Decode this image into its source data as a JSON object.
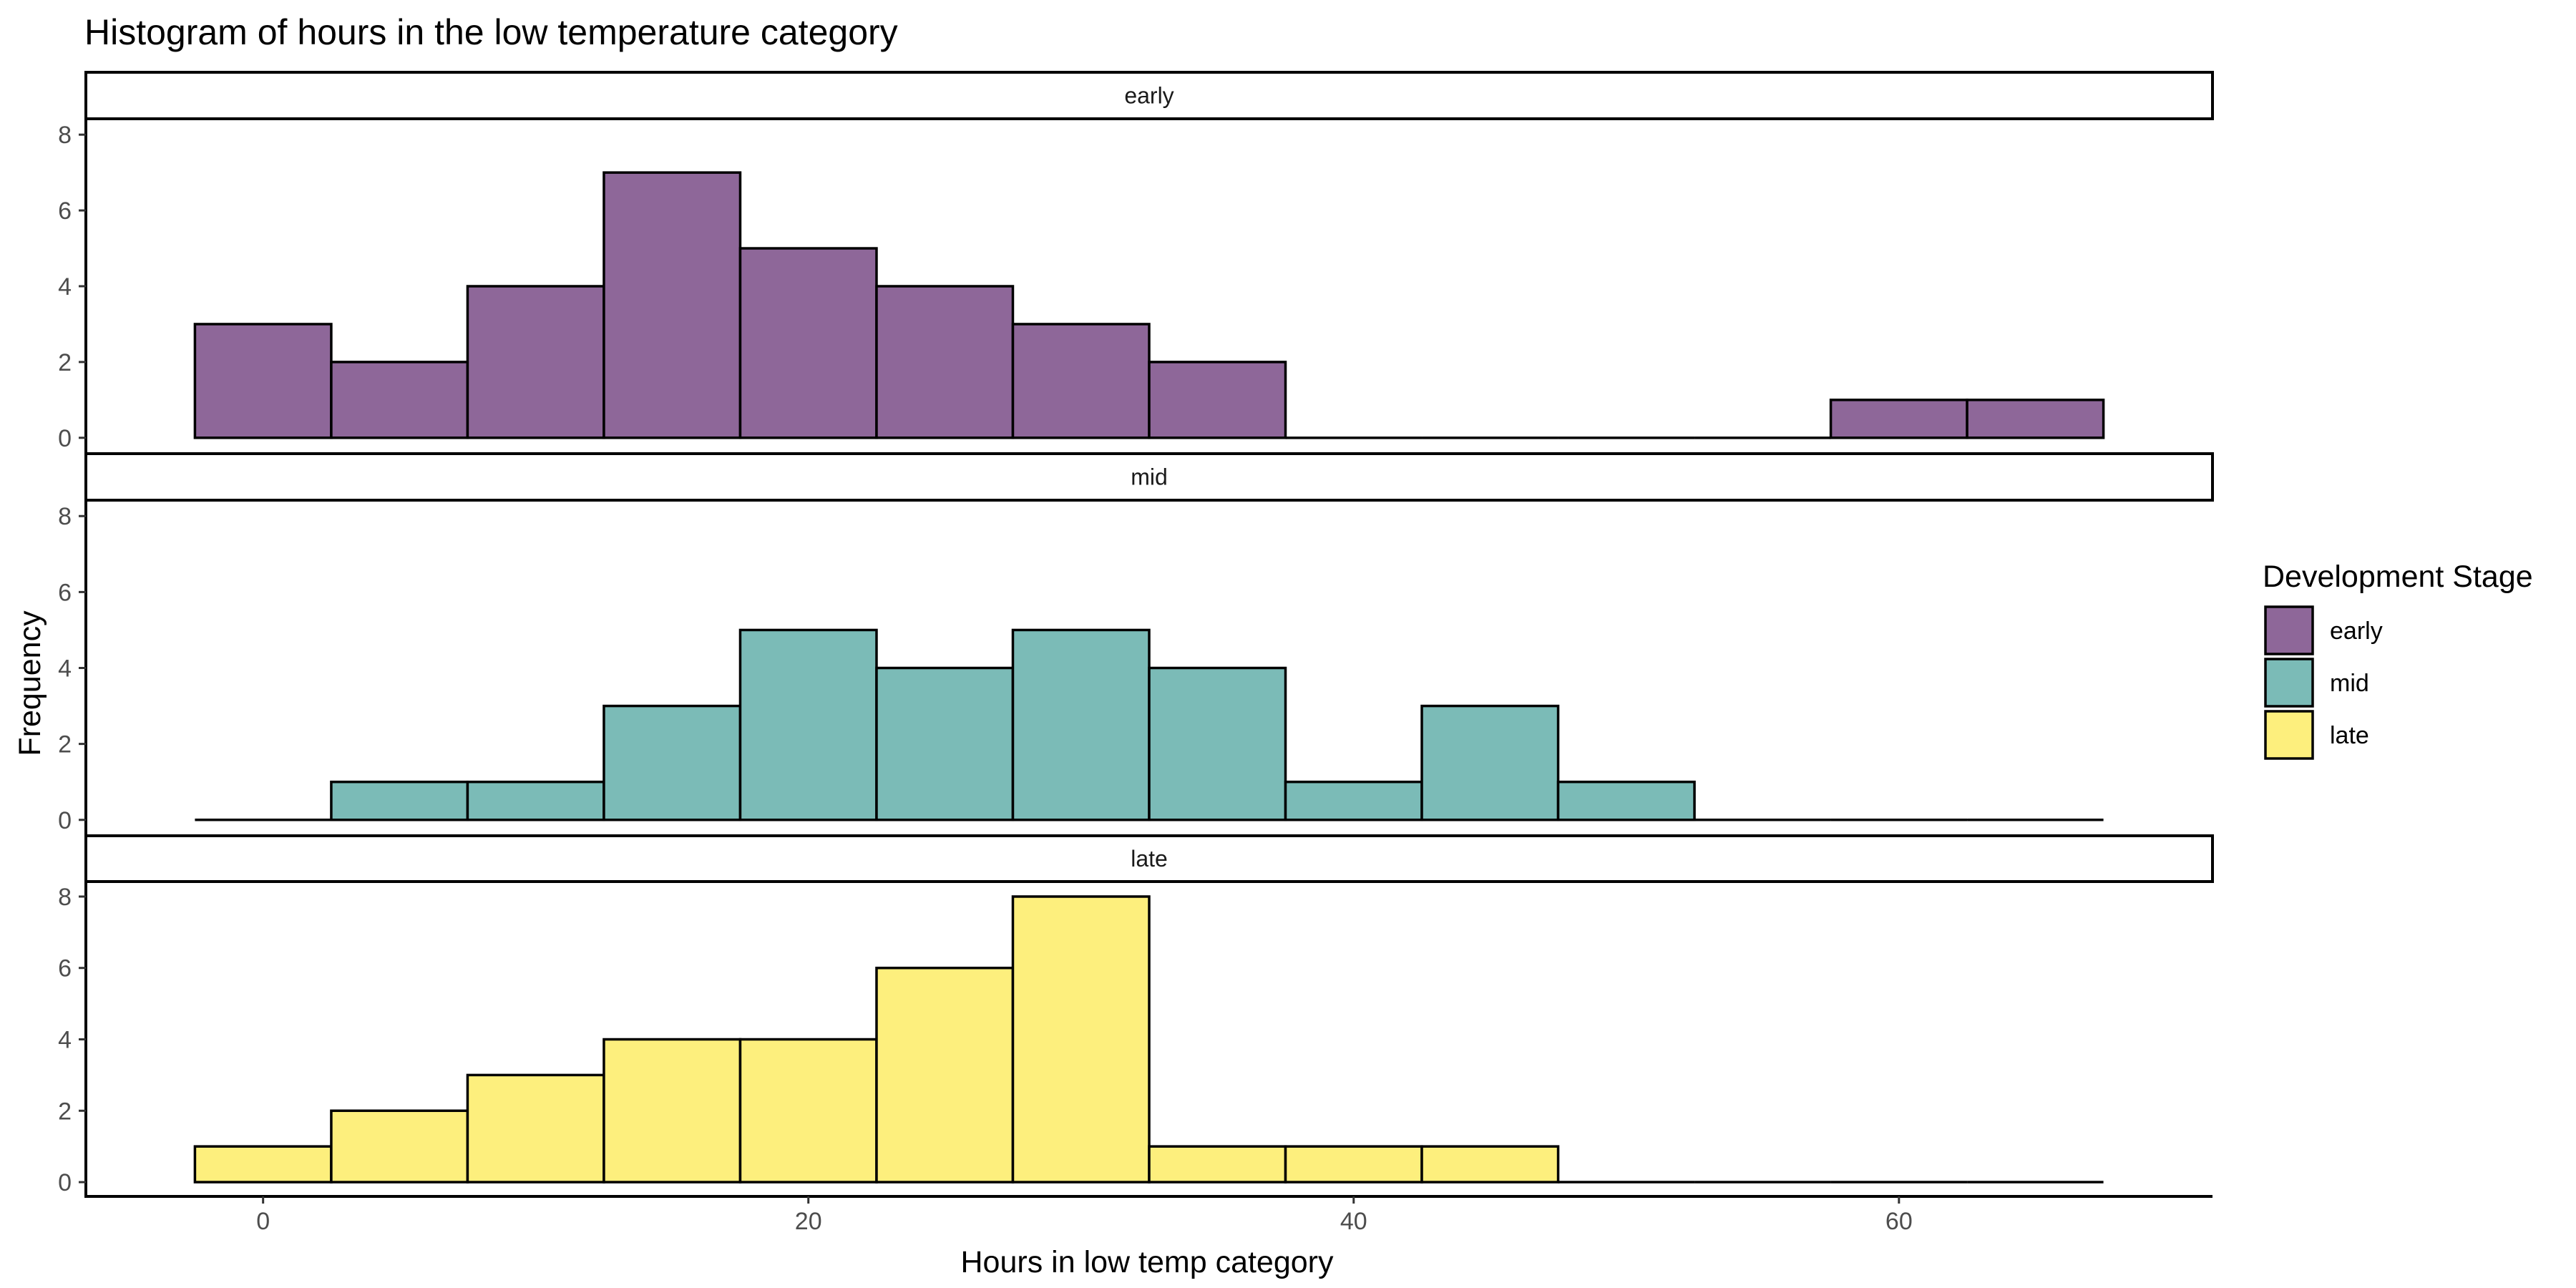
{
  "chart_data": {
    "type": "bar",
    "title": "Histogram of hours in the low temperature category",
    "xlabel": "Hours in low temp category",
    "ylabel": "Frequency",
    "xlim": [
      -6.5,
      71.5
    ],
    "ylim": [
      -0.4,
      8.4
    ],
    "x_ticks": [
      0,
      20,
      40,
      60
    ],
    "y_ticks": [
      0,
      2,
      4,
      6,
      8
    ],
    "bin_width": 5,
    "bin_centers": [
      0,
      5,
      10,
      15,
      20,
      25,
      30,
      35,
      40,
      45,
      50,
      55,
      60,
      65
    ],
    "legend": {
      "title": "Development Stage",
      "position": "right"
    },
    "grid": false,
    "series": [
      {
        "name": "early",
        "color": "#8E6799",
        "values": [
          3,
          2,
          4,
          7,
          5,
          4,
          3,
          2,
          0,
          0,
          0,
          0,
          1,
          1
        ]
      },
      {
        "name": "mid",
        "color": "#7BBBB7",
        "values": [
          0,
          1,
          1,
          3,
          5,
          4,
          5,
          4,
          1,
          3,
          1,
          0,
          0,
          0
        ]
      },
      {
        "name": "late",
        "color": "#FDEF7D",
        "values": [
          1,
          2,
          3,
          4,
          4,
          6,
          8,
          1,
          1,
          1,
          0,
          0,
          0,
          0
        ]
      }
    ]
  }
}
